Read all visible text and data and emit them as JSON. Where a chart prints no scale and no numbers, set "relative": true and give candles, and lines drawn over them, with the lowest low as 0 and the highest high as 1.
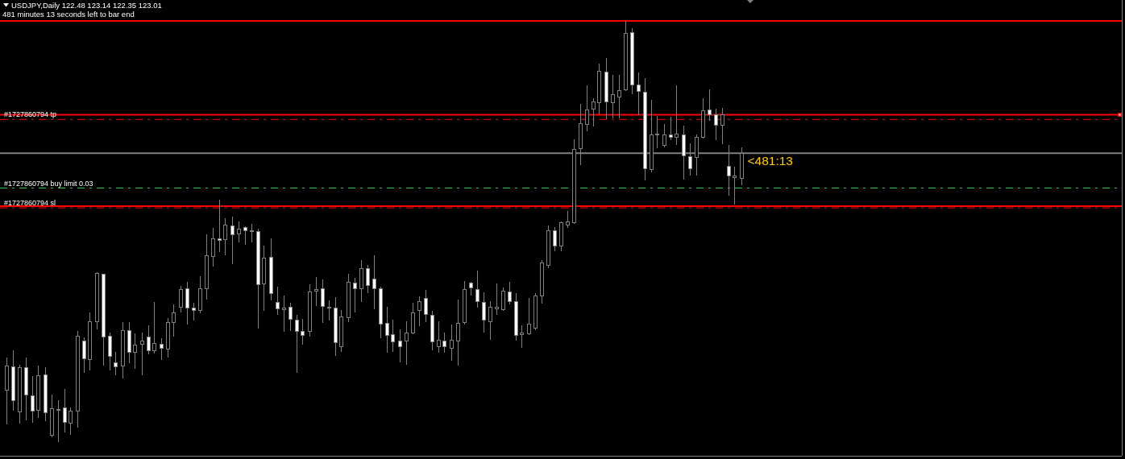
{
  "chart_data": {
    "type": "candlestick",
    "title": "USDJPY,Daily 122.48 123.14 122.35 123.01",
    "relative": true,
    "categories": [
      null,
      null,
      null,
      null,
      null,
      null,
      null,
      null,
      null,
      null,
      null,
      null,
      null,
      null,
      null,
      null,
      null,
      null,
      null,
      null,
      null,
      null,
      null,
      null,
      null,
      null,
      null,
      null,
      null,
      null,
      null,
      null,
      null,
      null,
      null,
      null,
      null,
      null,
      null,
      null,
      null,
      null,
      null,
      null,
      null,
      null,
      null,
      null,
      null,
      null,
      null,
      null,
      null,
      null,
      null,
      null,
      null,
      null,
      null,
      null,
      null,
      null,
      null,
      null,
      null,
      null,
      null,
      null,
      null,
      null,
      null,
      null,
      null,
      null,
      null,
      null,
      null,
      null,
      null,
      null,
      null,
      null,
      null,
      null,
      null,
      null,
      null,
      null,
      null,
      null,
      null,
      null,
      null,
      null,
      null,
      null,
      null,
      null,
      null,
      null,
      null,
      null,
      null,
      null,
      null,
      null,
      null,
      null,
      null,
      null,
      null,
      null,
      null,
      null,
      null
    ],
    "ohlc": [
      [
        0.123,
        0.2,
        0.042,
        0.181
      ],
      [
        0.179,
        0.218,
        0.074,
        0.098
      ],
      [
        0.071,
        0.183,
        0.044,
        0.177
      ],
      [
        0.177,
        0.2,
        0.052,
        0.112
      ],
      [
        0.11,
        0.157,
        0.046,
        0.073
      ],
      [
        0.075,
        0.181,
        0.057,
        0.158
      ],
      [
        0.16,
        0.177,
        0.049,
        0.07
      ],
      [
        0.016,
        0.112,
        0.01,
        0.079
      ],
      [
        0.077,
        0.098,
        0,
        0.076
      ],
      [
        0.081,
        0.126,
        0.022,
        0.047
      ],
      [
        0.044,
        0.082,
        0.016,
        0.073
      ],
      [
        0.073,
        0.263,
        0.034,
        0.251
      ],
      [
        0.24,
        0.249,
        0.163,
        0.198
      ],
      [
        0.195,
        0.307,
        0.17,
        0.286
      ],
      [
        0.286,
        0.403,
        0.268,
        0.401
      ],
      [
        0.399,
        0.4,
        0.182,
        0.249
      ],
      [
        0.251,
        0.259,
        0.17,
        0.204
      ],
      [
        0.188,
        0.213,
        0.158,
        0.178
      ],
      [
        0.181,
        0.284,
        0.151,
        0.265
      ],
      [
        0.265,
        0.284,
        0.187,
        0.213
      ],
      [
        0.213,
        0.258,
        0.174,
        0.23
      ],
      [
        0.232,
        0.26,
        0.159,
        0.24
      ],
      [
        0.249,
        0.277,
        0.208,
        0.217
      ],
      [
        0.217,
        0.332,
        0.21,
        0.234
      ],
      [
        0.232,
        0.246,
        0.195,
        0.223
      ],
      [
        0.221,
        0.294,
        0.201,
        0.284
      ],
      [
        0.284,
        0.327,
        0.251,
        0.307
      ],
      [
        0.32,
        0.371,
        0.307,
        0.362
      ],
      [
        0.364,
        0.38,
        0.279,
        0.318
      ],
      [
        0.318,
        0.33,
        0.289,
        0.313
      ],
      [
        0.312,
        0.394,
        0.306,
        0.364
      ],
      [
        0.364,
        0.493,
        0.338,
        0.443
      ],
      [
        0.44,
        0.508,
        0.416,
        0.483
      ],
      [
        0.483,
        0.575,
        0.451,
        0.478
      ],
      [
        0.48,
        0.531,
        0.443,
        0.515
      ],
      [
        0.513,
        0.535,
        0.422,
        0.492
      ],
      [
        0.494,
        0.524,
        0.474,
        0.506
      ],
      [
        0.51,
        0.512,
        0.468,
        0.502
      ],
      [
        0.499,
        0.518,
        0.473,
        0.502
      ],
      [
        0.499,
        0.506,
        0.27,
        0.374
      ],
      [
        0.376,
        0.466,
        0.312,
        0.437
      ],
      [
        0.439,
        0.483,
        0.337,
        0.353
      ],
      [
        0.332,
        0.369,
        0.302,
        0.316
      ],
      [
        0.315,
        0.347,
        0.262,
        0.318
      ],
      [
        0.32,
        0.33,
        0.264,
        0.292
      ],
      [
        0.29,
        0.302,
        0.163,
        0.263
      ],
      [
        0.263,
        0.292,
        0.23,
        0.253
      ],
      [
        0.263,
        0.374,
        0.251,
        0.357
      ],
      [
        0.358,
        0.392,
        0.323,
        0.362
      ],
      [
        0.364,
        0.386,
        0.283,
        0.322
      ],
      [
        0.318,
        0.337,
        0.288,
        0.32
      ],
      [
        0.318,
        0.344,
        0.205,
        0.236
      ],
      [
        0.227,
        0.313,
        0.214,
        0.297
      ],
      [
        0.295,
        0.399,
        0.284,
        0.38
      ],
      [
        0.378,
        0.389,
        0.308,
        0.364
      ],
      [
        0.364,
        0.432,
        0.333,
        0.412
      ],
      [
        0.412,
        0.421,
        0.354,
        0.372
      ],
      [
        0.387,
        0.443,
        0.316,
        0.364
      ],
      [
        0.364,
        0.369,
        0.246,
        0.28
      ],
      [
        0.282,
        0.32,
        0.212,
        0.253
      ],
      [
        0.255,
        0.29,
        0.214,
        0.238
      ],
      [
        0.24,
        0.267,
        0.189,
        0.227
      ],
      [
        0.24,
        0.286,
        0.184,
        0.259
      ],
      [
        0.258,
        0.33,
        0.256,
        0.307
      ],
      [
        0.313,
        0.346,
        0.275,
        0.334
      ],
      [
        0.341,
        0.361,
        0.285,
        0.303
      ],
      [
        0.301,
        0.311,
        0.218,
        0.238
      ],
      [
        0.227,
        0.286,
        0.212,
        0.242
      ],
      [
        0.24,
        0.26,
        0.212,
        0.227
      ],
      [
        0.223,
        0.279,
        0.193,
        0.242
      ],
      [
        0.24,
        0.338,
        0.182,
        0.282
      ],
      [
        0.284,
        0.382,
        0.279,
        0.362
      ],
      [
        0.378,
        0.38,
        0.348,
        0.366
      ],
      [
        0.362,
        0.407,
        0.318,
        0.334
      ],
      [
        0.332,
        0.355,
        0.26,
        0.29
      ],
      [
        0.286,
        0.334,
        0.243,
        0.32
      ],
      [
        0.316,
        0.376,
        0.302,
        0.32
      ],
      [
        0.315,
        0.367,
        0.311,
        0.359
      ],
      [
        0.357,
        0.38,
        0.326,
        0.334
      ],
      [
        0.334,
        0.353,
        0.241,
        0.253
      ],
      [
        0.255,
        0.276,
        0.224,
        0.258
      ],
      [
        0.257,
        0.342,
        0.254,
        0.28
      ],
      [
        0.271,
        0.353,
        0.265,
        0.347
      ],
      [
        0.347,
        0.431,
        0.328,
        0.425
      ],
      [
        0.42,
        0.514,
        0.413,
        0.501
      ],
      [
        0.502,
        0.51,
        0.453,
        0.465
      ],
      [
        0.465,
        0.523,
        0.453,
        0.521
      ],
      [
        0.515,
        0.548,
        0.508,
        0.523
      ],
      [
        0.52,
        0.719,
        0.517,
        0.695
      ],
      [
        0.696,
        0.803,
        0.658,
        0.756
      ],
      [
        0.754,
        0.847,
        0.738,
        0.789
      ],
      [
        0.79,
        0.816,
        0.749,
        0.808
      ],
      [
        0.805,
        0.898,
        0.778,
        0.881
      ],
      [
        0.879,
        0.912,
        0.766,
        0.807
      ],
      [
        0.805,
        0.872,
        0.769,
        0.824
      ],
      [
        0.819,
        0.872,
        0.769,
        0.835
      ],
      [
        0.836,
        1,
        0.834,
        0.971
      ],
      [
        0.973,
        0.983,
        0.826,
        0.848
      ],
      [
        0.848,
        0.878,
        0.777,
        0.832
      ],
      [
        0.831,
        0.864,
        0.622,
        0.649
      ],
      [
        0.647,
        0.813,
        0.641,
        0.73
      ],
      [
        0.73,
        0.774,
        0.698,
        0.732
      ],
      [
        0.704,
        0.756,
        0.7,
        0.73
      ],
      [
        0.73,
        0.772,
        0.716,
        0.724
      ],
      [
        0.723,
        0.846,
        0.705,
        0.732
      ],
      [
        0.73,
        0.751,
        0.624,
        0.679
      ],
      [
        0.678,
        0.709,
        0.633,
        0.649
      ],
      [
        0.676,
        0.73,
        0.633,
        0.724
      ],
      [
        0.723,
        0.816,
        0.721,
        0.787
      ],
      [
        0.789,
        0.837,
        0.763,
        0.777
      ],
      [
        0.777,
        0.791,
        0.717,
        0.753
      ],
      [
        0.753,
        0.793,
        0.708,
        0.777
      ],
      [
        0.655,
        0.705,
        0.584,
        0.632
      ],
      [
        0.628,
        0.654,
        0.564,
        0.631
      ],
      [
        0.626,
        0.7,
        0.61,
        0.686
      ]
    ],
    "ref_lines": [
      {
        "axis": "y",
        "value": 1,
        "color": "#ff0000",
        "line_style": "solid"
      },
      {
        "axis": "y",
        "value": 0.777,
        "color": "#ff0000",
        "line_style": "solid"
      },
      {
        "axis": "y",
        "value": 0.766,
        "label": "#1727860794 tp",
        "color": "#ff0000",
        "line_style": "dashed"
      },
      {
        "axis": "y",
        "value": 0.686,
        "color": "#808080",
        "line_style": "solid"
      },
      {
        "axis": "y",
        "value": 0.603,
        "label": "#1727860794 buy limit 0.03",
        "color": "#32cd32",
        "line_style": "dashed"
      },
      {
        "axis": "y",
        "value": 0.56,
        "color": "#ff0000",
        "line_style": "solid"
      },
      {
        "axis": "y",
        "value": 0.556,
        "label": "#1727860794 sl",
        "color": "#ff0000",
        "line_style": "dashed"
      }
    ],
    "annotations": [
      "481 minutes 13 seconds left to bar end",
      "<481:13"
    ]
  }
}
